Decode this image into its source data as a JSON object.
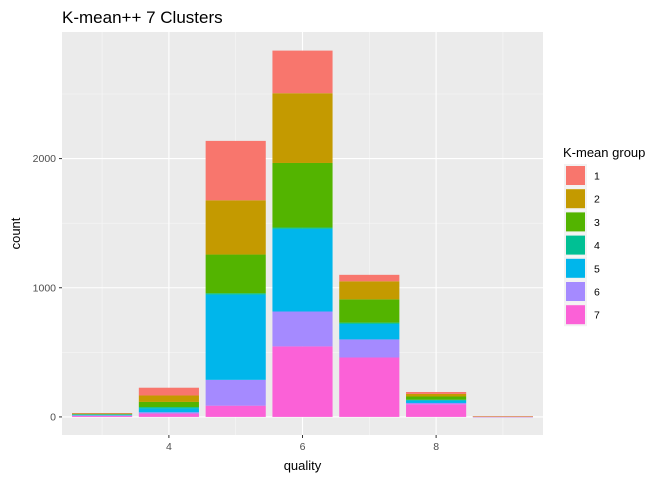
{
  "chart_data": {
    "type": "bar",
    "stacked": true,
    "title": "K-mean++ 7 Clusters",
    "xlabel": "quality",
    "ylabel": "count",
    "x": [
      3,
      4,
      5,
      6,
      7,
      8,
      9
    ],
    "x_tick_labels": [
      "4",
      "6",
      "8"
    ],
    "x_ticks": [
      4,
      6,
      8
    ],
    "y_ticks": [
      0,
      1000,
      2000
    ],
    "y_tick_labels": [
      "0",
      "1000",
      "2000"
    ],
    "xlim": [
      2.4,
      9.6
    ],
    "ylim": [
      -140,
      2980
    ],
    "grid": true,
    "legend": {
      "title": "K-mean group",
      "position": "right"
    },
    "stack_order_bottom_to_top": [
      "7",
      "6",
      "5",
      "4",
      "3",
      "2",
      "1"
    ],
    "series": [
      {
        "name": "1",
        "color": "#F8766D",
        "values": [
          2,
          60,
          460,
          330,
          50,
          15,
          1
        ]
      },
      {
        "name": "2",
        "color": "#C49A00",
        "values": [
          3,
          50,
          420,
          540,
          140,
          20,
          1
        ]
      },
      {
        "name": "3",
        "color": "#53B400",
        "values": [
          5,
          40,
          300,
          500,
          180,
          25,
          0
        ]
      },
      {
        "name": "4",
        "color": "#00C094",
        "values": [
          4,
          10,
          10,
          10,
          10,
          5,
          0
        ]
      },
      {
        "name": "5",
        "color": "#00B6EB",
        "values": [
          4,
          30,
          660,
          640,
          120,
          20,
          1
        ]
      },
      {
        "name": "6",
        "color": "#A58AFF",
        "values": [
          3,
          10,
          200,
          270,
          140,
          10,
          1
        ]
      },
      {
        "name": "7",
        "color": "#FB61D7",
        "values": [
          9,
          26,
          87,
          546,
          460,
          98,
          1
        ]
      }
    ]
  }
}
